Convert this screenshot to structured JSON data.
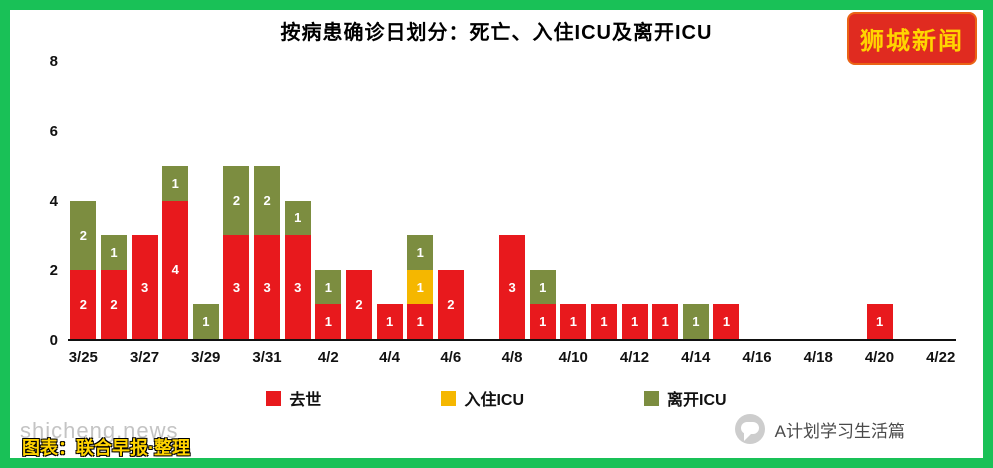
{
  "title": "按病患确诊日划分：死亡、入住ICU及离开ICU",
  "logo": {
    "text": "狮城新闻"
  },
  "colors": {
    "frame_green": "#19c157",
    "logo_bg": "#e02b20",
    "logo_fg": "#ffd400",
    "deaths_red": "#e8191d",
    "icu_in_yellow": "#f5b700",
    "icu_out_olive": "#7c8d40",
    "watermark_gray": "#c4c4c4",
    "watermark_yellow": "#ffd400",
    "icon_gray": "#cdcdcd"
  },
  "chart_data": {
    "type": "bar",
    "stacked": true,
    "title": "按病患确诊日划分：死亡、入住ICU及离开ICU",
    "xlabel": "",
    "ylabel": "",
    "ylim": [
      0,
      8
    ],
    "yticks": [
      0,
      2,
      4,
      6,
      8
    ],
    "grid": false,
    "legend_position": "bottom",
    "categories": [
      "3/25",
      "3/26",
      "3/27",
      "3/28",
      "3/29",
      "3/30",
      "3/31",
      "4/1",
      "4/2",
      "4/3",
      "4/4",
      "4/5",
      "4/6",
      "4/7",
      "4/8",
      "4/9",
      "4/10",
      "4/11",
      "4/12",
      "4/13",
      "4/14",
      "4/15",
      "4/16",
      "4/17",
      "4/18",
      "4/19",
      "4/20",
      "4/21",
      "4/22"
    ],
    "xtick_labels": [
      "3/25",
      "3/27",
      "3/29",
      "3/31",
      "4/2",
      "4/4",
      "4/6",
      "4/8",
      "4/10",
      "4/12",
      "4/14",
      "4/16",
      "4/18",
      "4/20",
      "4/22"
    ],
    "series": [
      {
        "key": "deaths",
        "name": "去世",
        "color": "#e8191d",
        "values": [
          2,
          2,
          3,
          4,
          0,
          3,
          3,
          3,
          1,
          2,
          1,
          1,
          2,
          0,
          3,
          1,
          1,
          1,
          1,
          1,
          0,
          1,
          0,
          0,
          0,
          0,
          1,
          0,
          0
        ]
      },
      {
        "key": "icu-in",
        "name": "入住ICU",
        "color": "#f5b700",
        "values": [
          0,
          0,
          0,
          0,
          0,
          0,
          0,
          0,
          0,
          0,
          0,
          1,
          0,
          0,
          0,
          0,
          0,
          0,
          0,
          0,
          0,
          0,
          0,
          0,
          0,
          0,
          0,
          0,
          0
        ]
      },
      {
        "key": "icu-out",
        "name": "离开ICU",
        "color": "#7c8d40",
        "values": [
          2,
          1,
          0,
          1,
          1,
          2,
          2,
          1,
          1,
          0,
          0,
          1,
          0,
          0,
          0,
          1,
          0,
          0,
          0,
          0,
          1,
          0,
          0,
          0,
          0,
          0,
          0,
          0,
          0
        ]
      }
    ]
  },
  "watermarks": {
    "site": "shicheng.news",
    "credit": "图表：联合早报·整理"
  },
  "footer": {
    "channel": "A计划学习生活篇"
  }
}
